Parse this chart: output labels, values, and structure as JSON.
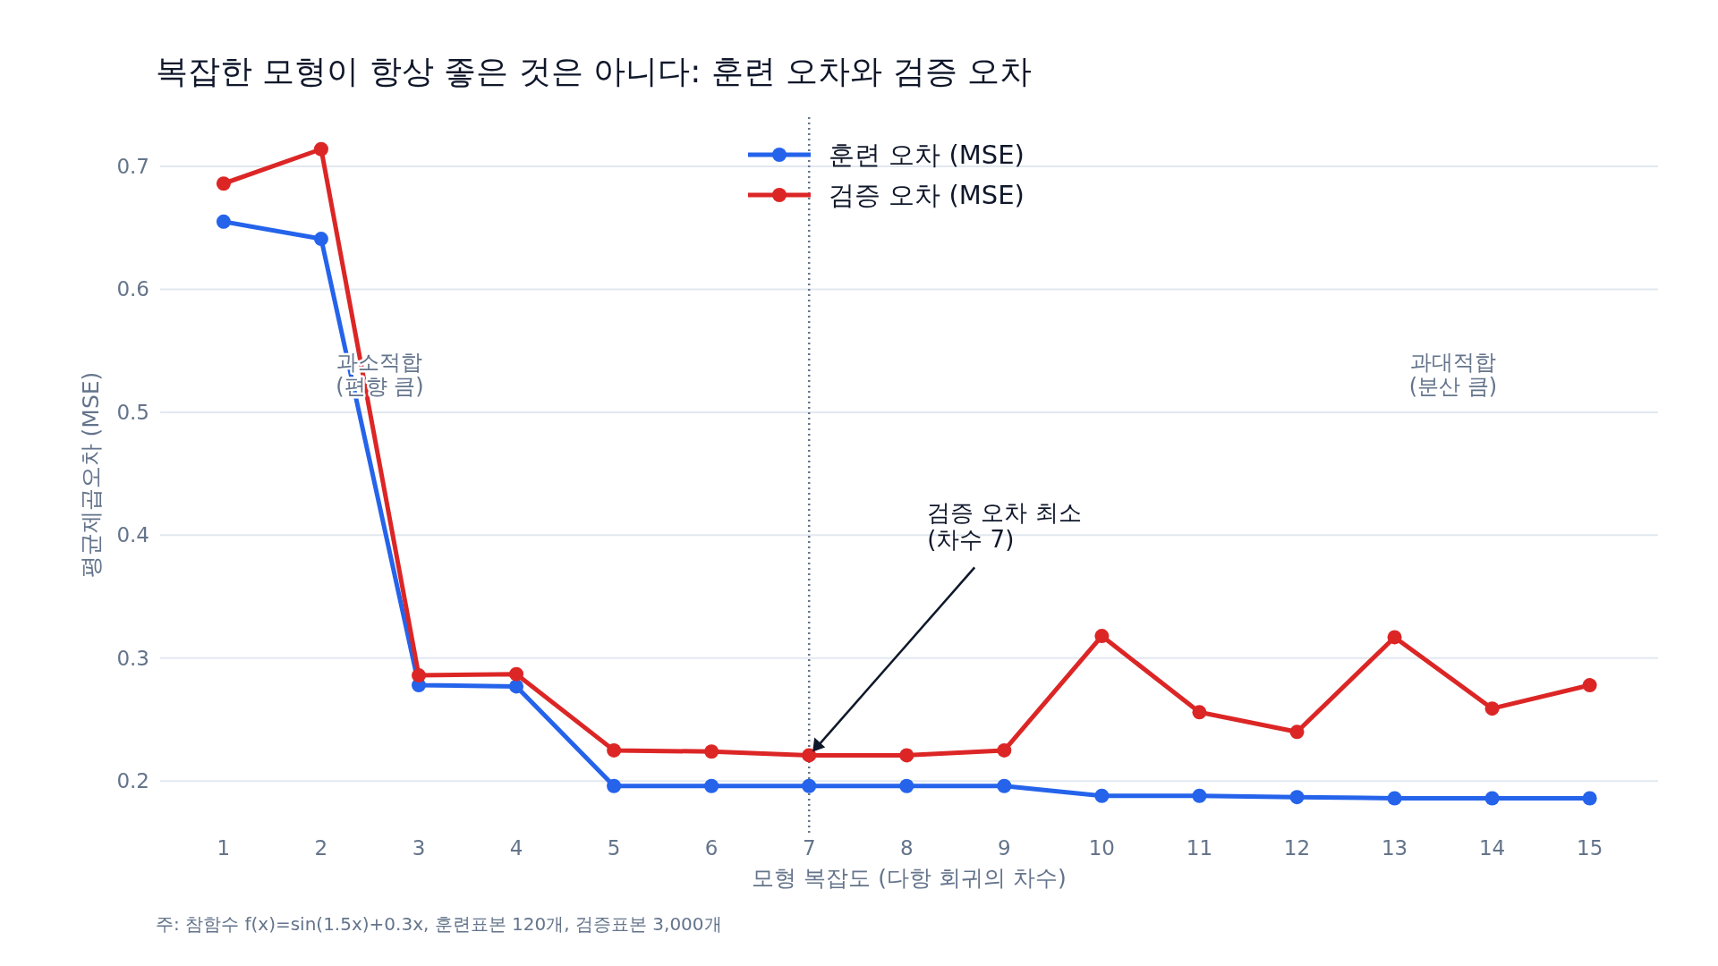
{
  "chart_data": {
    "type": "line",
    "title": "복잡한 모형이 항상 좋은 것은 아니다: 훈련 오차와 검증 오차",
    "xlabel": "모형 복잡도 (다항 회귀의 차수)",
    "ylabel": "평균제곱오차 (MSE)",
    "x": [
      1,
      2,
      3,
      4,
      5,
      6,
      7,
      8,
      9,
      10,
      11,
      12,
      13,
      14,
      15
    ],
    "xlim": [
      0.35,
      15.7
    ],
    "xticks": [
      1,
      2,
      3,
      4,
      5,
      6,
      7,
      8,
      9,
      10,
      11,
      12,
      13,
      14,
      15
    ],
    "ylim": [
      0.158,
      0.74
    ],
    "yticks": [
      0.2,
      0.3,
      0.4,
      0.5,
      0.6,
      0.7
    ],
    "series": [
      {
        "name": "훈련 오차 (MSE)",
        "color": "#2563eb",
        "values": [
          0.655,
          0.641,
          0.278,
          0.277,
          0.196,
          0.196,
          0.196,
          0.196,
          0.196,
          0.188,
          0.188,
          0.187,
          0.186,
          0.186,
          0.186
        ]
      },
      {
        "name": "검증 오차 (MSE)",
        "color": "#dc2626",
        "values": [
          0.686,
          0.714,
          0.286,
          0.287,
          0.225,
          0.224,
          0.221,
          0.221,
          0.225,
          0.318,
          0.256,
          0.24,
          0.317,
          0.259,
          0.278
        ]
      }
    ],
    "ref_lines": [
      {
        "axis": "x",
        "value": 7,
        "color": "#64748b",
        "line_style": "dotted"
      }
    ],
    "annotations": [
      "과소적합\n(편향 큼)",
      "과대적합\n(분산 큼)",
      "주: 참함수 f(x)=sin(1.5x)+0.3x, 훈련표본 120개, 검증표본 3,000개",
      {
        "text": "검증 오차 최소\n(차수 7)",
        "x": 7,
        "y": 0.221
      }
    ],
    "grid": "y",
    "legend": "top",
    "marker": "circle",
    "line_style": "solid"
  }
}
